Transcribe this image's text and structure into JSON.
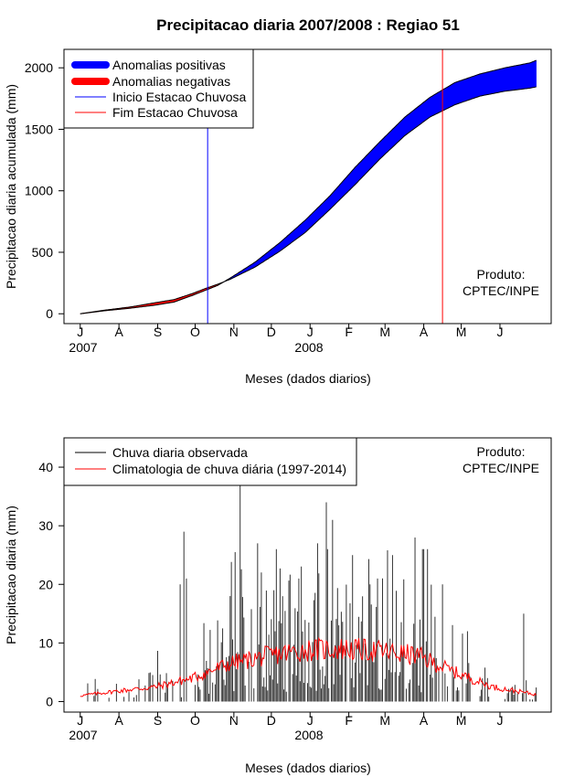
{
  "chart_data": [
    {
      "type": "area",
      "title": "Precipitacao diaria 2007/2008 : Regiao 51",
      "xlabel": "Meses (dados diarios)",
      "ylabel": "Precipitacao diaria acumulada (mm)",
      "x_ticks": [
        "J",
        "A",
        "S",
        "O",
        "N",
        "D",
        "J",
        "F",
        "M",
        "A",
        "M",
        "J"
      ],
      "year_labels": [
        "2007",
        "2008"
      ],
      "y_ticks": [
        0,
        500,
        1000,
        1500,
        2000
      ],
      "ylim": [
        -80,
        2150
      ],
      "xlim_days": [
        -13,
        377
      ],
      "legend": [
        {
          "label": "Anomalias positivas",
          "color": "#0000ff",
          "style": "thick"
        },
        {
          "label": "Anomalias negativas",
          "color": "#ff0000",
          "style": "thick"
        },
        {
          "label": "Inicio Estacao Chuvosa",
          "color": "#0000ff",
          "style": "thin"
        },
        {
          "label": "Fim Estacao Chuvosa",
          "color": "#ff0000",
          "style": "thin"
        }
      ],
      "annotation": [
        "Produto:",
        "CPTEC/INPE"
      ],
      "season_start_day": 102,
      "season_end_day": 290,
      "observed_cumulative": {
        "days": [
          0,
          20,
          40,
          60,
          75,
          90,
          100,
          110,
          120,
          140,
          160,
          180,
          200,
          220,
          240,
          260,
          280,
          300,
          320,
          340,
          360,
          365
        ],
        "values": [
          0,
          25,
          45,
          70,
          95,
          150,
          190,
          230,
          290,
          420,
          580,
          760,
          960,
          1190,
          1400,
          1600,
          1760,
          1880,
          1950,
          2000,
          2040,
          2060
        ]
      },
      "climatology_cumulative": {
        "days": [
          0,
          20,
          40,
          60,
          75,
          90,
          100,
          110,
          120,
          140,
          160,
          180,
          200,
          220,
          240,
          260,
          280,
          300,
          320,
          340,
          360,
          365
        ],
        "values": [
          0,
          30,
          55,
          90,
          115,
          165,
          205,
          240,
          280,
          380,
          510,
          660,
          850,
          1050,
          1260,
          1450,
          1600,
          1700,
          1770,
          1810,
          1835,
          1845
        ]
      }
    },
    {
      "type": "bar",
      "xlabel": "Meses (dados diarios)",
      "ylabel": "Precipitacao diaria (mm)",
      "x_ticks": [
        "J",
        "A",
        "S",
        "O",
        "N",
        "D",
        "J",
        "F",
        "M",
        "A",
        "M",
        "J"
      ],
      "year_labels": [
        "2007",
        "2008"
      ],
      "y_ticks": [
        0,
        10,
        20,
        30,
        40
      ],
      "ylim": [
        -1.8,
        45
      ],
      "xlim_days": [
        -13,
        377
      ],
      "legend": [
        {
          "label": "Chuva diaria observada",
          "color": "#000000"
        },
        {
          "label": "Climatologia de chuva diária (1997-2014)",
          "color": "#ff0000"
        }
      ],
      "annotation": [
        "Produto:",
        "CPTEC/INPE"
      ],
      "observed_daily_peaks": {
        "days": [
          80,
          83,
          85,
          120,
          128,
          142,
          155,
          175,
          190,
          197,
          202,
          218,
          232,
          238,
          250,
          268,
          275,
          290,
          310,
          355
        ],
        "values": [
          20,
          29,
          21,
          18,
          37,
          27,
          19,
          21,
          27,
          34,
          31,
          25,
          20,
          21,
          25,
          28,
          26,
          20,
          12,
          15
        ]
      },
      "climatology_daily": {
        "days": [
          0,
          30,
          60,
          90,
          120,
          150,
          180,
          210,
          240,
          270,
          300,
          330,
          365
        ],
        "values": [
          1,
          1.8,
          2.5,
          4,
          6.5,
          7.8,
          8.8,
          9,
          8.6,
          7.8,
          5,
          2.5,
          1.2
        ]
      }
    }
  ]
}
